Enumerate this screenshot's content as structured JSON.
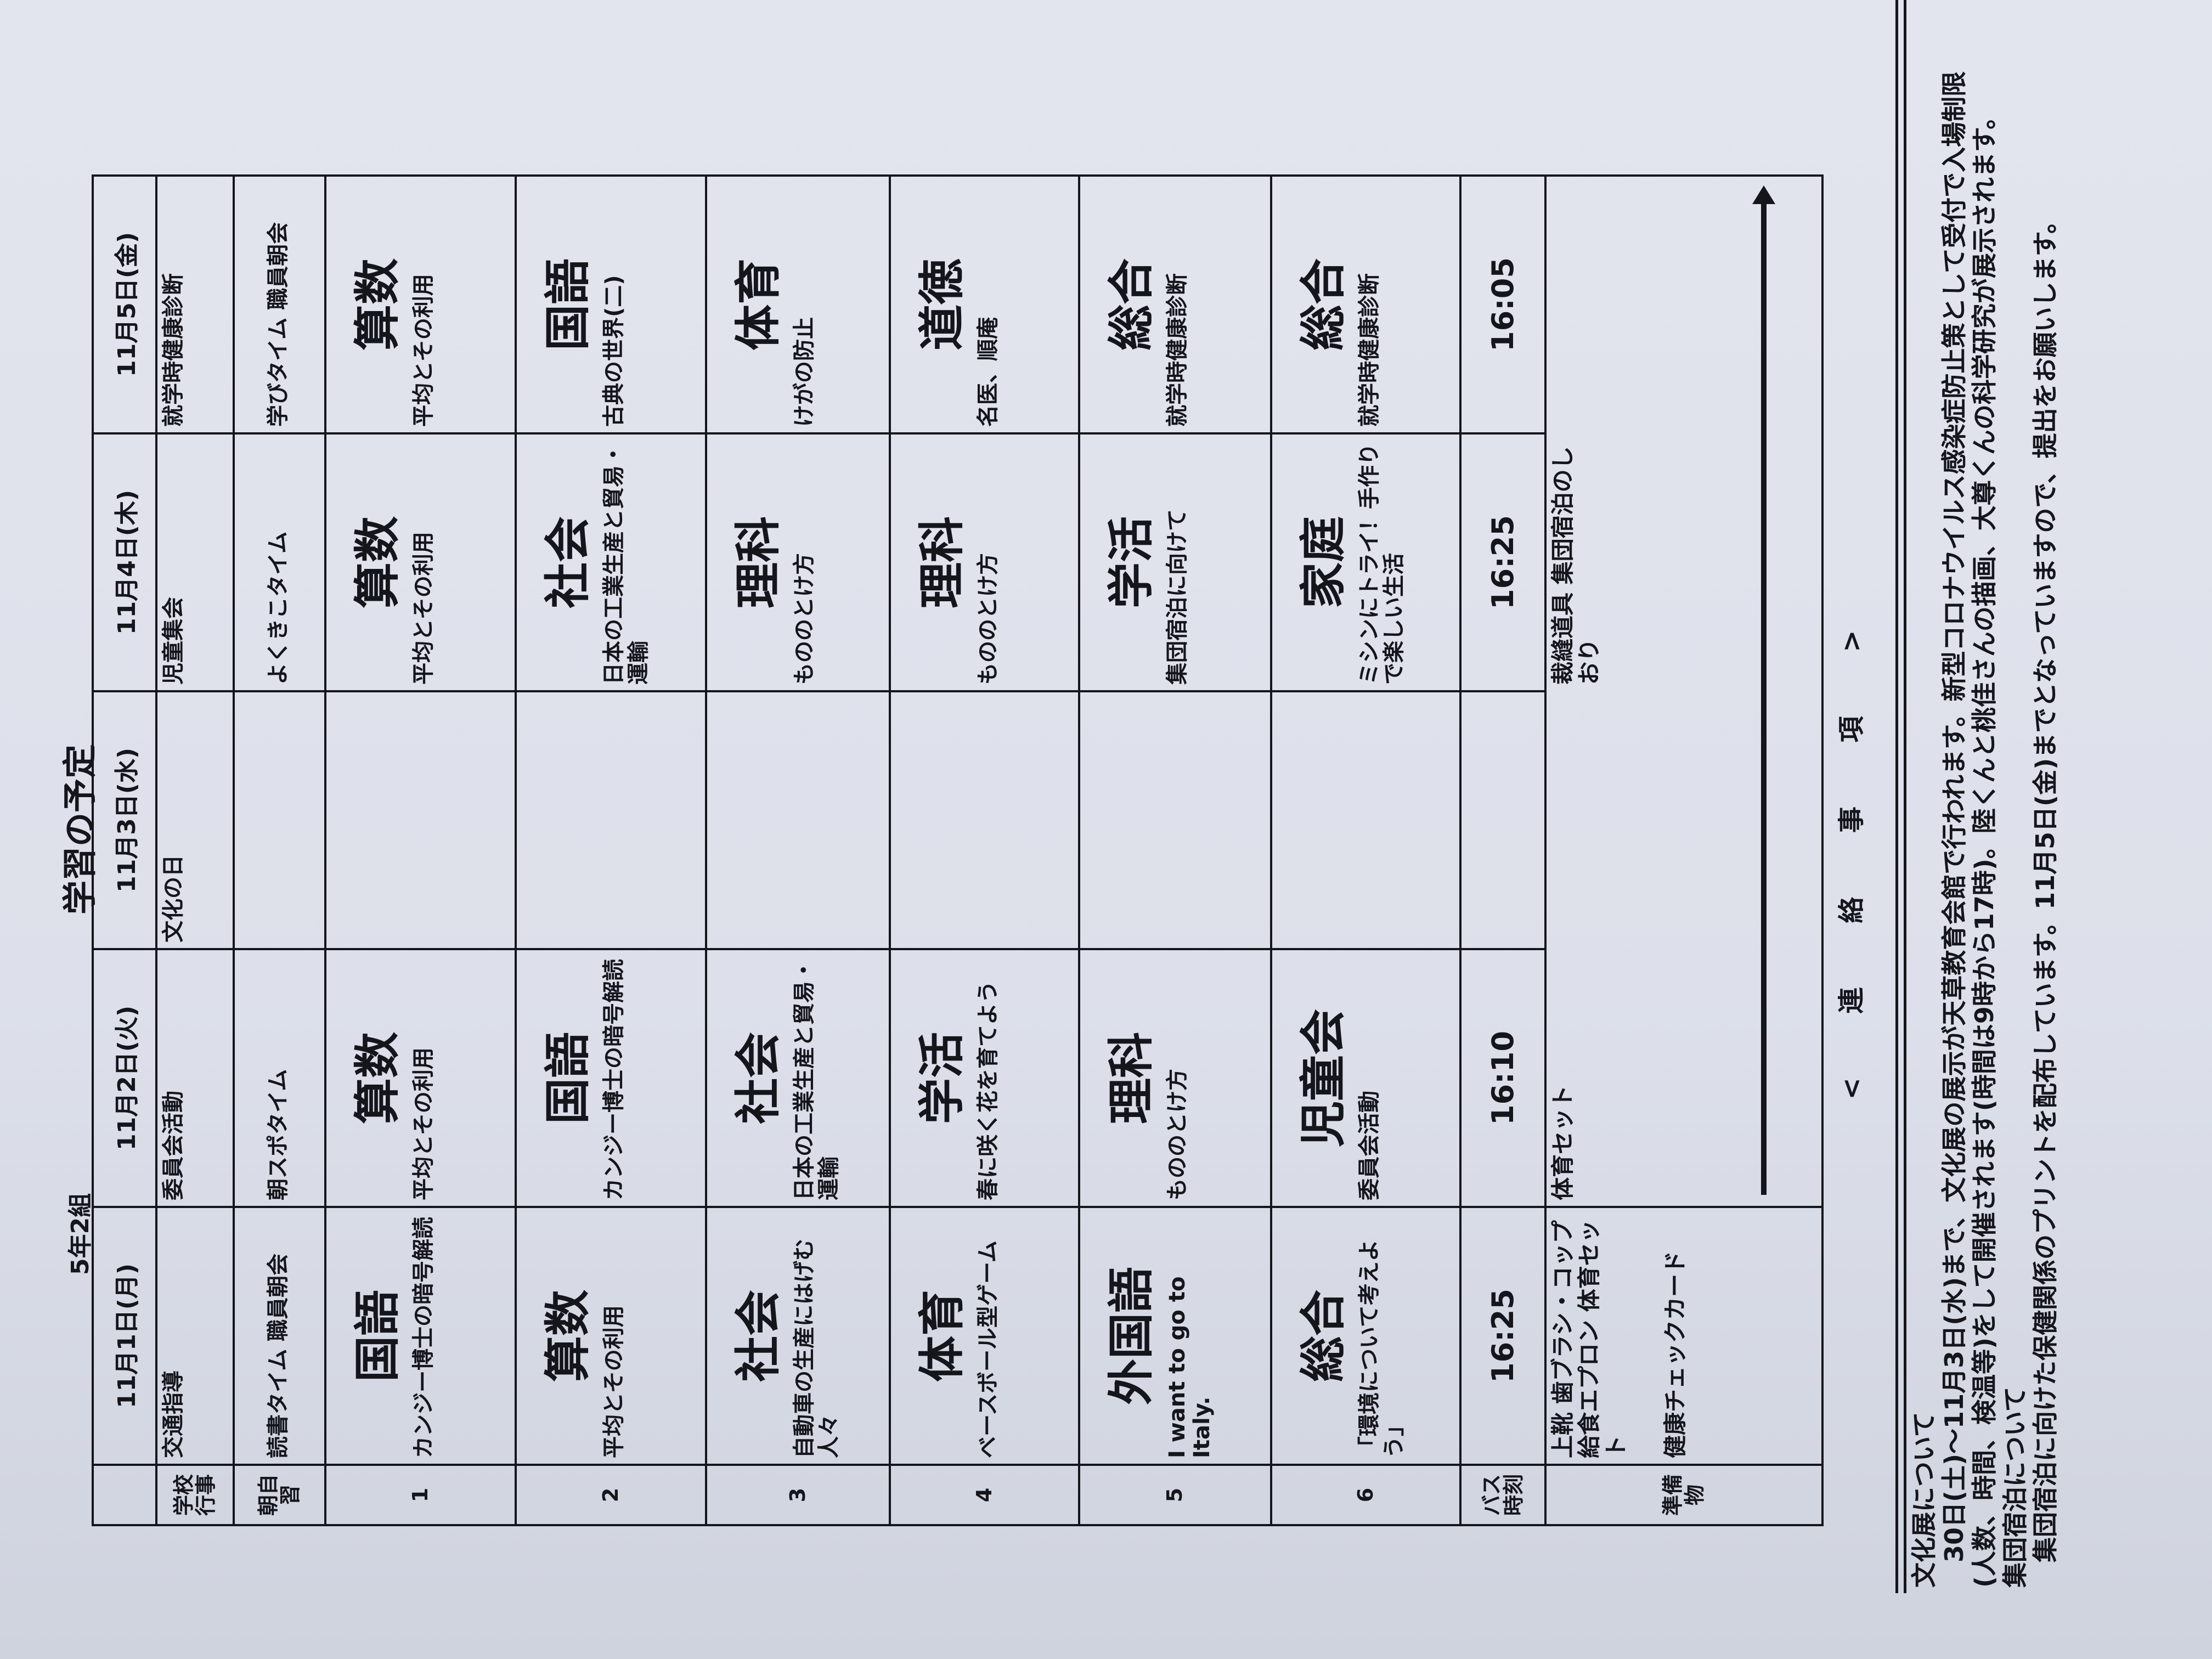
{
  "header": {
    "class_name": "5年2組",
    "title": "学習の予定"
  },
  "days": [
    "11月1日(月)",
    "11月2日(火)",
    "11月3日(水)",
    "11月4日(木)",
    "11月5日(金)"
  ],
  "labels": {
    "events": "学校行事",
    "morning": "朝自習",
    "bus": "バス時刻",
    "prep": "準備物",
    "periods": [
      "1",
      "2",
      "3",
      "4",
      "5",
      "6"
    ]
  },
  "events": [
    "交通指導",
    "委員会活動",
    "文化の日",
    "児童集会",
    "就学時健康診断"
  ],
  "morning": [
    "読書タイム 職員朝会",
    "朝スポタイム",
    "",
    "よくきこタイム",
    "学びタイム 職員朝会"
  ],
  "periods": [
    [
      {
        "s": "国語",
        "d": "カンジー博士の暗号解読"
      },
      {
        "s": "算数",
        "d": "平均とその利用"
      },
      {
        "s": "",
        "d": ""
      },
      {
        "s": "算数",
        "d": "平均とその利用"
      },
      {
        "s": "算数",
        "d": "平均とその利用"
      }
    ],
    [
      {
        "s": "算数",
        "d": "平均とその利用"
      },
      {
        "s": "国語",
        "d": "カンジー博士の暗号解読"
      },
      {
        "s": "",
        "d": ""
      },
      {
        "s": "社会",
        "d": "日本の工業生産と貿易・運輸"
      },
      {
        "s": "国語",
        "d": "古典の世界(二)"
      }
    ],
    [
      {
        "s": "社会",
        "d": "自動車の生産にはげむ人々"
      },
      {
        "s": "社会",
        "d": "日本の工業生産と貿易・運輸"
      },
      {
        "s": "",
        "d": ""
      },
      {
        "s": "理科",
        "d": "もののとけ方"
      },
      {
        "s": "体育",
        "d": "けがの防止"
      }
    ],
    [
      {
        "s": "体育",
        "d": "ベースボール型ゲーム"
      },
      {
        "s": "学活",
        "d": "春に咲く花を育てよう"
      },
      {
        "s": "",
        "d": ""
      },
      {
        "s": "理科",
        "d": "もののとけ方"
      },
      {
        "s": "道徳",
        "d": "名医、順庵"
      }
    ],
    [
      {
        "s": "外国語",
        "d": "I want to go to Italy."
      },
      {
        "s": "理科",
        "d": "もののとけ方"
      },
      {
        "s": "",
        "d": ""
      },
      {
        "s": "学活",
        "d": "集団宿泊に向けて"
      },
      {
        "s": "総合",
        "d": "就学時健康診断"
      }
    ],
    [
      {
        "s": "総合",
        "d": "「環境について考えよう」"
      },
      {
        "s": "児童会",
        "d": "委員会活動"
      },
      {
        "s": "",
        "d": ""
      },
      {
        "s": "家庭",
        "d": "ミシンにトライ！手作りで楽しい生活"
      },
      {
        "s": "総合",
        "d": "就学時健康診断"
      }
    ]
  ],
  "bus": [
    "16:25",
    "16:10",
    "",
    "16:25",
    "16:05"
  ],
  "prep": {
    "mon": "上靴 歯ブラシ・コップ 給食エプロン 体育セット",
    "mon2": "健康チェックカード",
    "tue": "体育セット",
    "thu": "裁縫道具 集団宿泊のしおり"
  },
  "notes": {
    "heading": "< 連 絡 事 項 >",
    "items": [
      {
        "title": "文化展について",
        "body": "30日(土)～11月3日(水)まで、文化展の展示が天草教育会館で行われます。新型コロナウイルス感染症防止策として受付で入場制限(人数、時間、検温等)をして開催されます(時間は9時から17時)。陸くんと桃佳さんの描画、大尊くんの科学研究が展示されます。"
      },
      {
        "title": "集団宿泊について",
        "body": "集団宿泊に向けた保健関係のプリントを配布しています。11月5日(金)までとなっていますので、提出をお願いします。"
      }
    ]
  }
}
